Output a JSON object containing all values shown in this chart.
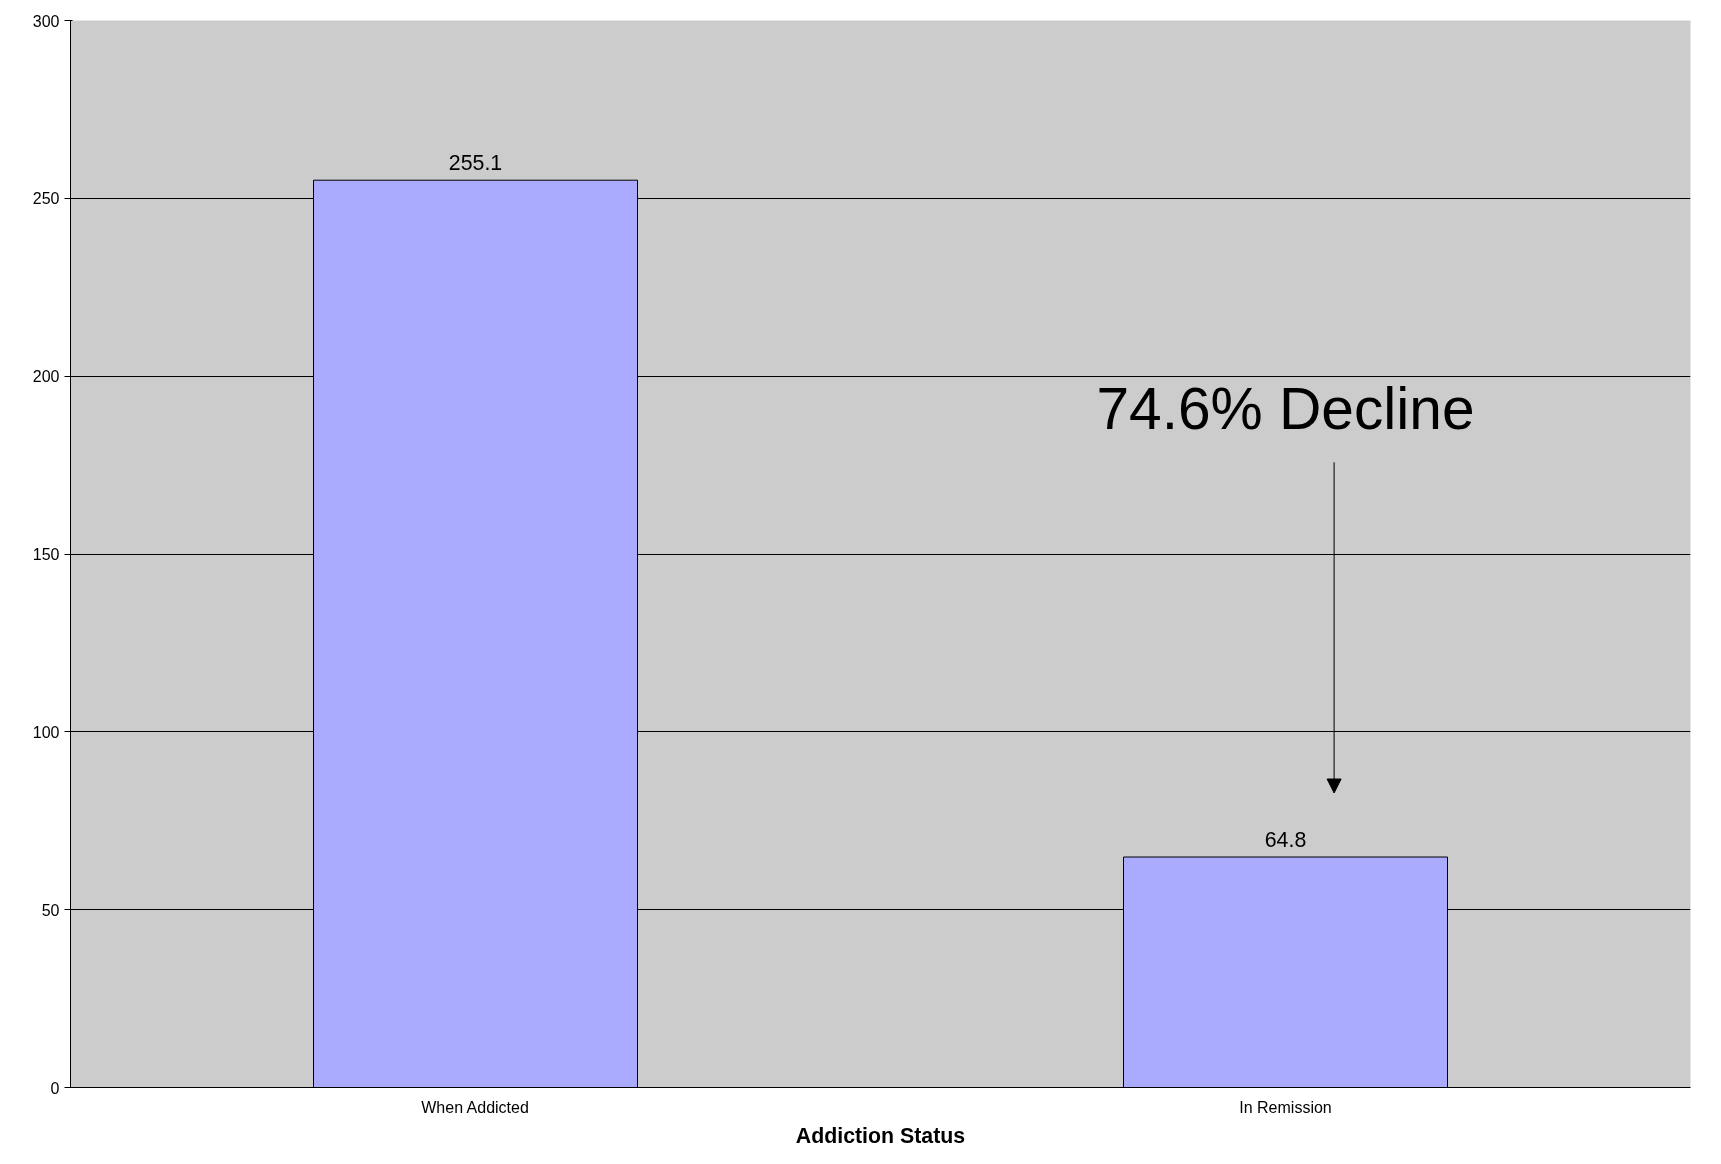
{
  "chart_data": {
    "type": "bar",
    "xlabel": "Addiction Status",
    "categories": [
      "When Addicted",
      "In Remission"
    ],
    "values": [
      255.1,
      64.8
    ],
    "color": "#aaaaff",
    "ylim": [
      0,
      300
    ],
    "yticks": [
      0,
      50,
      100,
      150,
      200,
      250,
      300
    ],
    "grid": "y",
    "data_labels": true,
    "annotations": [
      "74.6% Decline"
    ]
  }
}
